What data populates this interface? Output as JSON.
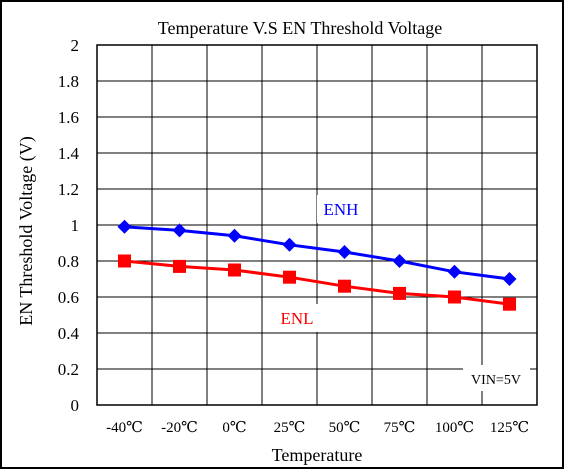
{
  "chart_data": {
    "type": "line",
    "title": "Temperature V.S EN Threshold Voltage",
    "xlabel": "Temperature",
    "ylabel": "EN Threshold Voltage (V)",
    "categories": [
      "-40℃",
      "-20℃",
      "0℃",
      "25℃",
      "50℃",
      "75℃",
      "100℃",
      "125℃"
    ],
    "ylim": [
      0,
      2
    ],
    "yticks": [
      "0",
      "0.2",
      "0.4",
      "0.6",
      "0.8",
      "1",
      "1.2",
      "1.4",
      "1.6",
      "1.8",
      "2"
    ],
    "grid": true,
    "series": [
      {
        "name": "ENH",
        "color": "#0000ff",
        "marker": "diamond",
        "values": [
          0.99,
          0.97,
          0.94,
          0.89,
          0.85,
          0.8,
          0.74,
          0.7
        ]
      },
      {
        "name": "ENL",
        "color": "#ff0000",
        "marker": "square",
        "values": [
          0.8,
          0.77,
          0.75,
          0.71,
          0.66,
          0.62,
          0.6,
          0.56
        ]
      }
    ],
    "annotation": "VIN=5V"
  }
}
